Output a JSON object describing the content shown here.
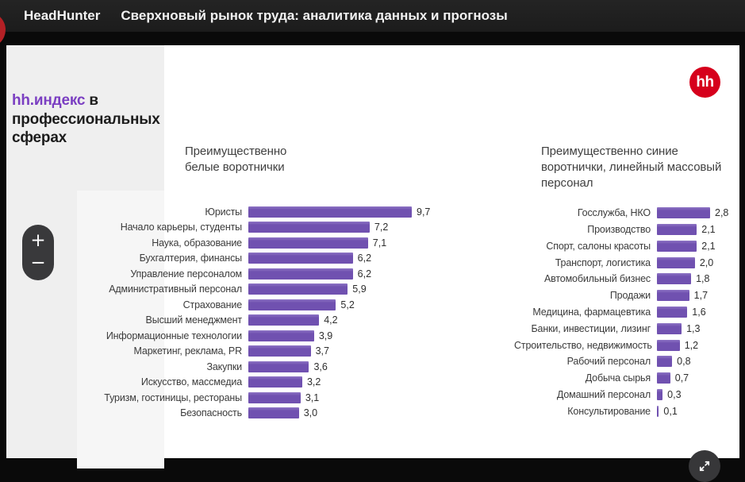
{
  "topbar": {
    "app_name": "HeadHunter",
    "presentation_title": "Сверхновый рынок труда: аналитика данных и прогнозы"
  },
  "slide": {
    "index_title_accent": "hh.индекс",
    "index_title_rest": " в профессиональных сферах",
    "logo_text": "hh"
  },
  "controls": {
    "zoom_in": "+",
    "zoom_out": "−"
  },
  "chart_data": [
    {
      "type": "bar",
      "orientation": "horizontal",
      "title": "Преимущественно белые воротнички",
      "categories": [
        "Юристы",
        "Начало карьеры, студенты",
        "Наука, образование",
        "Бухгалтерия, финансы",
        "Управление персоналом",
        "Административный персонал",
        "Страхование",
        "Высший менеджмент",
        "Информационные технологии",
        "Маркетинг, реклама, PR",
        "Закупки",
        "Искусство, массмедиа",
        "Туризм, гостиницы, рестораны",
        "Безопасность"
      ],
      "values": [
        9.7,
        7.2,
        7.1,
        6.2,
        6.2,
        5.9,
        5.2,
        4.2,
        3.9,
        3.7,
        3.6,
        3.2,
        3.1,
        3.0
      ],
      "value_labels": [
        "9,7",
        "7,2",
        "7,1",
        "6,2",
        "6,2",
        "5,9",
        "5,2",
        "4,2",
        "3,9",
        "3,7",
        "3,6",
        "3,2",
        "3,1",
        "3,0"
      ],
      "xlim": [
        0,
        9.7
      ],
      "bar_color": "#7051b0",
      "grid": false,
      "legend": false
    },
    {
      "type": "bar",
      "orientation": "horizontal",
      "title": "Преимущественно синие воротнички, линейный массовый персонал",
      "categories": [
        "Госслужба, НКО",
        "Производство",
        "Спорт, салоны красоты",
        "Транспорт, логистика",
        "Автомобильный бизнес",
        "Продажи",
        "Медицина, фармацевтика",
        "Банки, инвестиции, лизинг",
        "Строительство, недвижимость",
        "Рабочий персонал",
        "Добыча сырья",
        "Домашний персонал",
        "Консультирование"
      ],
      "values": [
        2.8,
        2.1,
        2.1,
        2.0,
        1.8,
        1.7,
        1.6,
        1.3,
        1.2,
        0.8,
        0.7,
        0.3,
        0.1
      ],
      "value_labels": [
        "2,8",
        "2,1",
        "2,1",
        "2,0",
        "1,8",
        "1,7",
        "1,6",
        "1,3",
        "1,2",
        "0,8",
        "0,7",
        "0,3",
        "0,1"
      ],
      "xlim": [
        0,
        2.8
      ],
      "bar_color": "#7051b0",
      "grid": false,
      "legend": false
    }
  ],
  "colors": {
    "bar_purple": "#7051b0",
    "accent_purple": "#7b3fc2",
    "brand_red": "#d6001c",
    "topbar_bg": "#1e1e1e",
    "panel_gray": "#efefef"
  }
}
